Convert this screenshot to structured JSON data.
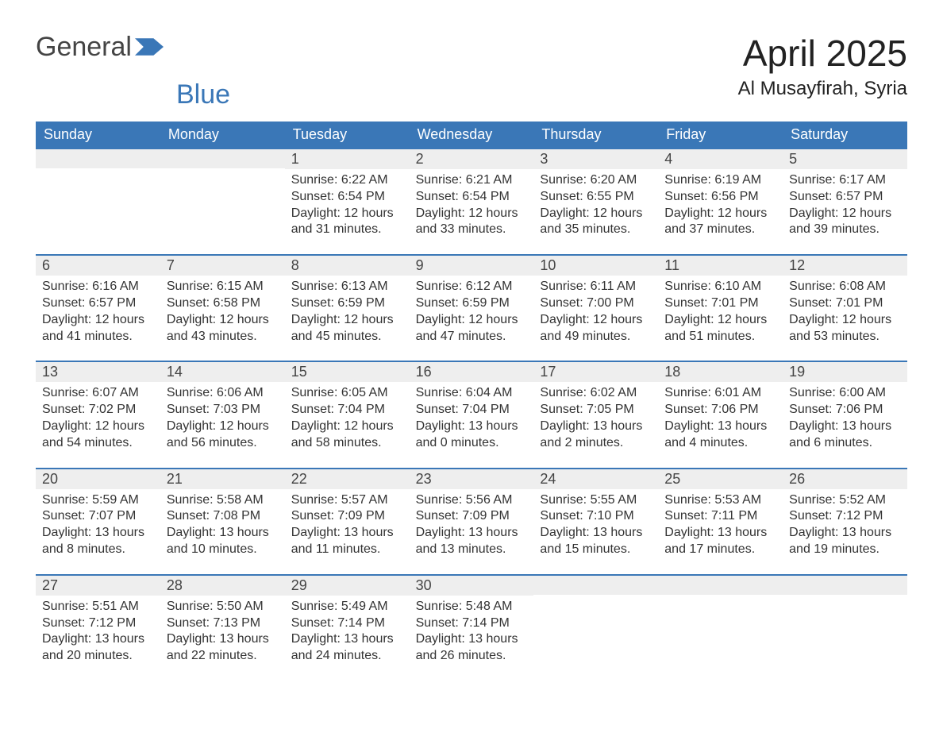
{
  "brand": {
    "word1": "General",
    "word2": "Blue",
    "logo_fill": "#3a77b7"
  },
  "colors": {
    "header_bg": "#3a77b7",
    "header_text": "#ffffff",
    "date_strip_bg": "#eeeeee",
    "body_text": "#333333",
    "background": "#ffffff"
  },
  "typography": {
    "base_font": "Arial, Helvetica, sans-serif",
    "title_size_pt": 34,
    "header_size_pt": 14,
    "body_size_pt": 12
  },
  "title": "April 2025",
  "location": "Al Musayfirah, Syria",
  "weekdays": [
    "Sunday",
    "Monday",
    "Tuesday",
    "Wednesday",
    "Thursday",
    "Friday",
    "Saturday"
  ],
  "calendar": {
    "type": "table",
    "columns": 7,
    "leading_blanks": 2,
    "days": [
      {
        "n": 1,
        "sr": "6:22 AM",
        "ss": "6:54 PM",
        "dl": "12 hours and 31 minutes."
      },
      {
        "n": 2,
        "sr": "6:21 AM",
        "ss": "6:54 PM",
        "dl": "12 hours and 33 minutes."
      },
      {
        "n": 3,
        "sr": "6:20 AM",
        "ss": "6:55 PM",
        "dl": "12 hours and 35 minutes."
      },
      {
        "n": 4,
        "sr": "6:19 AM",
        "ss": "6:56 PM",
        "dl": "12 hours and 37 minutes."
      },
      {
        "n": 5,
        "sr": "6:17 AM",
        "ss": "6:57 PM",
        "dl": "12 hours and 39 minutes."
      },
      {
        "n": 6,
        "sr": "6:16 AM",
        "ss": "6:57 PM",
        "dl": "12 hours and 41 minutes."
      },
      {
        "n": 7,
        "sr": "6:15 AM",
        "ss": "6:58 PM",
        "dl": "12 hours and 43 minutes."
      },
      {
        "n": 8,
        "sr": "6:13 AM",
        "ss": "6:59 PM",
        "dl": "12 hours and 45 minutes."
      },
      {
        "n": 9,
        "sr": "6:12 AM",
        "ss": "6:59 PM",
        "dl": "12 hours and 47 minutes."
      },
      {
        "n": 10,
        "sr": "6:11 AM",
        "ss": "7:00 PM",
        "dl": "12 hours and 49 minutes."
      },
      {
        "n": 11,
        "sr": "6:10 AM",
        "ss": "7:01 PM",
        "dl": "12 hours and 51 minutes."
      },
      {
        "n": 12,
        "sr": "6:08 AM",
        "ss": "7:01 PM",
        "dl": "12 hours and 53 minutes."
      },
      {
        "n": 13,
        "sr": "6:07 AM",
        "ss": "7:02 PM",
        "dl": "12 hours and 54 minutes."
      },
      {
        "n": 14,
        "sr": "6:06 AM",
        "ss": "7:03 PM",
        "dl": "12 hours and 56 minutes."
      },
      {
        "n": 15,
        "sr": "6:05 AM",
        "ss": "7:04 PM",
        "dl": "12 hours and 58 minutes."
      },
      {
        "n": 16,
        "sr": "6:04 AM",
        "ss": "7:04 PM",
        "dl": "13 hours and 0 minutes."
      },
      {
        "n": 17,
        "sr": "6:02 AM",
        "ss": "7:05 PM",
        "dl": "13 hours and 2 minutes."
      },
      {
        "n": 18,
        "sr": "6:01 AM",
        "ss": "7:06 PM",
        "dl": "13 hours and 4 minutes."
      },
      {
        "n": 19,
        "sr": "6:00 AM",
        "ss": "7:06 PM",
        "dl": "13 hours and 6 minutes."
      },
      {
        "n": 20,
        "sr": "5:59 AM",
        "ss": "7:07 PM",
        "dl": "13 hours and 8 minutes."
      },
      {
        "n": 21,
        "sr": "5:58 AM",
        "ss": "7:08 PM",
        "dl": "13 hours and 10 minutes."
      },
      {
        "n": 22,
        "sr": "5:57 AM",
        "ss": "7:09 PM",
        "dl": "13 hours and 11 minutes."
      },
      {
        "n": 23,
        "sr": "5:56 AM",
        "ss": "7:09 PM",
        "dl": "13 hours and 13 minutes."
      },
      {
        "n": 24,
        "sr": "5:55 AM",
        "ss": "7:10 PM",
        "dl": "13 hours and 15 minutes."
      },
      {
        "n": 25,
        "sr": "5:53 AM",
        "ss": "7:11 PM",
        "dl": "13 hours and 17 minutes."
      },
      {
        "n": 26,
        "sr": "5:52 AM",
        "ss": "7:12 PM",
        "dl": "13 hours and 19 minutes."
      },
      {
        "n": 27,
        "sr": "5:51 AM",
        "ss": "7:12 PM",
        "dl": "13 hours and 20 minutes."
      },
      {
        "n": 28,
        "sr": "5:50 AM",
        "ss": "7:13 PM",
        "dl": "13 hours and 22 minutes."
      },
      {
        "n": 29,
        "sr": "5:49 AM",
        "ss": "7:14 PM",
        "dl": "13 hours and 24 minutes."
      },
      {
        "n": 30,
        "sr": "5:48 AM",
        "ss": "7:14 PM",
        "dl": "13 hours and 26 minutes."
      }
    ],
    "labels": {
      "sunrise": "Sunrise: ",
      "sunset": "Sunset: ",
      "daylight": "Daylight: "
    }
  }
}
